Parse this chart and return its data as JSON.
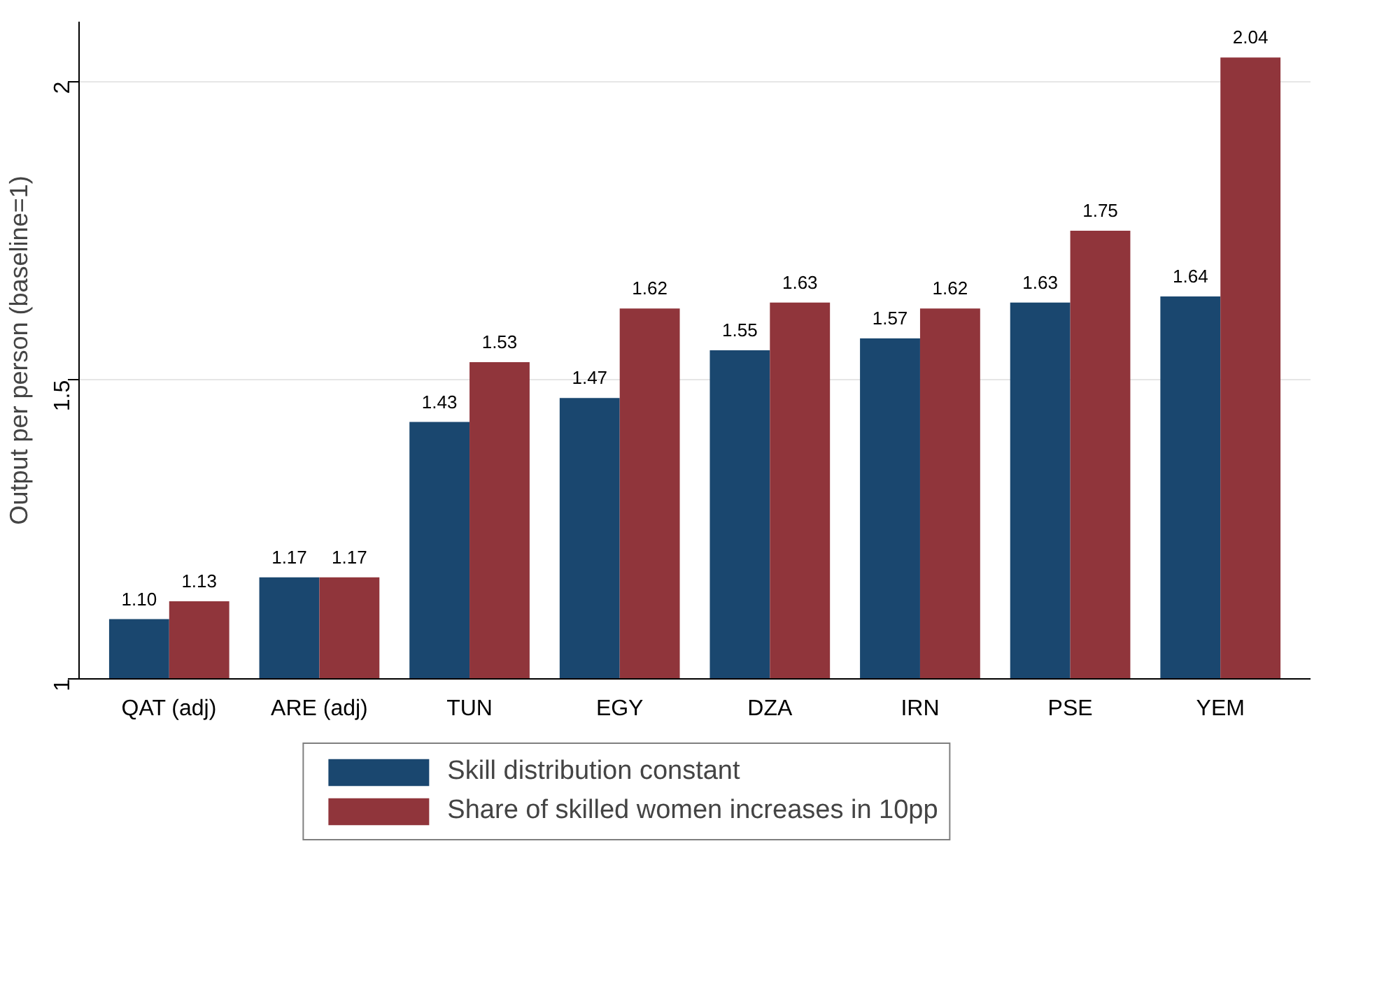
{
  "chart_data": {
    "type": "bar",
    "ylabel": "Output per person (baseline=1)",
    "categories": [
      "QAT (adj)",
      "ARE (adj)",
      "TUN",
      "EGY",
      "DZA",
      "IRN",
      "PSE",
      "YEM"
    ],
    "series": [
      {
        "name": "Skill distribution constant",
        "color": "#1a476f",
        "values": [
          1.1,
          1.17,
          1.43,
          1.47,
          1.55,
          1.57,
          1.63,
          1.64
        ],
        "value_labels": [
          "1.10",
          "1.17",
          "1.43",
          "1.47",
          "1.55",
          "1.57",
          "1.63",
          "1.64"
        ]
      },
      {
        "name": "Share of skilled women increases in 10pp",
        "color": "#90353b",
        "values": [
          1.13,
          1.17,
          1.53,
          1.62,
          1.63,
          1.62,
          1.75,
          2.04
        ],
        "value_labels": [
          "1.13",
          "1.17",
          "1.53",
          "1.62",
          "1.63",
          "1.62",
          "1.75",
          "2.04"
        ]
      }
    ],
    "ylim": [
      1,
      2.1
    ],
    "yticks": [
      1,
      1.5,
      2
    ],
    "grid": "y",
    "legend": "bottom"
  }
}
